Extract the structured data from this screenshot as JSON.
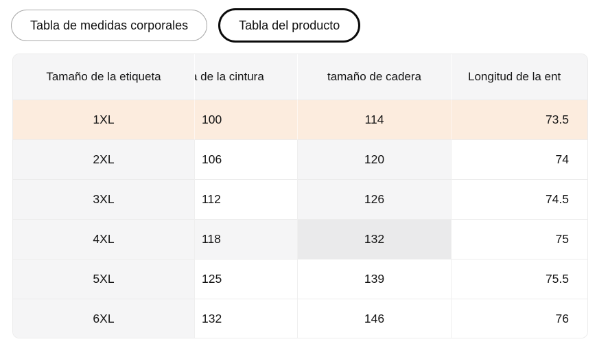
{
  "tabs": {
    "body_measurements_label": "Tabla de medidas corporales",
    "product_label": "Tabla del producto",
    "active_tab": "Tabla del producto"
  },
  "table": {
    "columns": [
      {
        "label": "Tamaño de la etiqueta",
        "clipped": false
      },
      {
        "label": "a de la cintura",
        "clipped": "left"
      },
      {
        "label": "tamaño de cadera",
        "clipped": false
      },
      {
        "label": "Longitud de la ent",
        "clipped": "right"
      }
    ],
    "rows": [
      {
        "size": "1XL",
        "waist": "100",
        "hip": "114",
        "inseam": "73.5"
      },
      {
        "size": "2XL",
        "waist": "106",
        "hip": "120",
        "inseam": "74"
      },
      {
        "size": "3XL",
        "waist": "112",
        "hip": "126",
        "inseam": "74.5"
      },
      {
        "size": "4XL",
        "waist": "118",
        "hip": "132",
        "inseam": "75"
      },
      {
        "size": "5XL",
        "waist": "125",
        "hip": "139",
        "inseam": "75.5"
      },
      {
        "size": "6XL",
        "waist": "132",
        "hip": "146",
        "inseam": "76"
      }
    ],
    "state": {
      "selected_size_row": "1XL",
      "hover_highlight": {
        "row": "4XL",
        "column": "tamaño de cadera"
      }
    }
  },
  "colors": {
    "selected_row_bg": "#fcecde",
    "header_bg": "#f5f5f6",
    "label_column_bg": "#f5f5f6",
    "hover_path_bg": "#f5f5f6",
    "hover_cell_bg": "#eaeaeb",
    "grid_line": "#ececec",
    "active_tab_border": "#0b0b0b",
    "inactive_tab_border": "#a9a9a9",
    "text": "#141414"
  }
}
